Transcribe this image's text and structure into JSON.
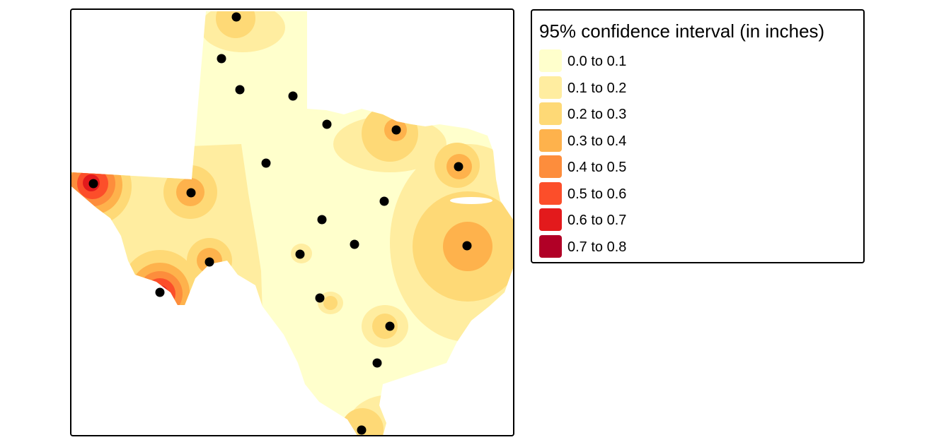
{
  "legend": {
    "title": "95% confidence interval (in inches)",
    "items": [
      {
        "label": "0.0 to 0.1",
        "color": "#FFFFCC"
      },
      {
        "label": "0.1 to 0.2",
        "color": "#FFEDA0"
      },
      {
        "label": "0.2 to 0.3",
        "color": "#FED976"
      },
      {
        "label": "0.3 to 0.4",
        "color": "#FEB24C"
      },
      {
        "label": "0.4 to 0.5",
        "color": "#FD8D3C"
      },
      {
        "label": "0.5 to 0.6",
        "color": "#FC4E2A"
      },
      {
        "label": "0.6 to 0.7",
        "color": "#E31A1C"
      },
      {
        "label": "0.7 to 0.8",
        "color": "#B10026"
      }
    ]
  },
  "map": {
    "region": "Texas",
    "point_color": "#000000",
    "station_count": 21
  }
}
